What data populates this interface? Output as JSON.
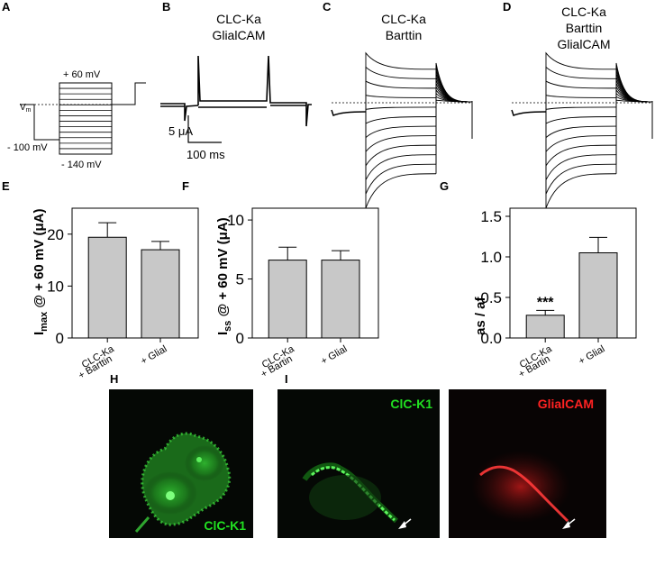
{
  "panels": {
    "A": {
      "letter": "A",
      "vm": "V",
      "vm_sub": "m",
      "top": "+ 60 mV",
      "hold": "- 100 mV",
      "bottom": "- 140 mV"
    },
    "B": {
      "letter": "B",
      "title": [
        "CLC-Ka",
        "GlialCAM"
      ],
      "scale_y": "5 μA",
      "scale_x": "100 ms"
    },
    "C": {
      "letter": "C",
      "title": [
        "CLC-Ka",
        "Barttin"
      ]
    },
    "D": {
      "letter": "D",
      "title": [
        "CLC-Ka",
        "Barttin",
        "GlialCAM"
      ]
    },
    "H": {
      "letter": "H",
      "stain": "ClC-K1"
    },
    "I": {
      "letter": "I",
      "stain_left": "ClC-K1",
      "stain_right": "GlialCAM"
    }
  },
  "colors": {
    "green": "#21e021",
    "red": "#ff2222",
    "bar": "#c8c8c8"
  },
  "chart_data": [
    {
      "panel": "E",
      "letter": "E",
      "type": "bar",
      "categories": [
        [
          "CLC-Ka",
          "+ Barttin"
        ],
        [
          "+ Glial"
        ]
      ],
      "values": [
        19.4,
        17.0
      ],
      "errors": [
        2.8,
        1.6
      ],
      "ylim": [
        0,
        25
      ],
      "yticks": [
        0,
        10,
        20
      ],
      "ylabel": {
        "main": "I",
        "sub": "max",
        "rest": " @ + 60 mV (μA)"
      }
    },
    {
      "panel": "F",
      "letter": "F",
      "type": "bar",
      "categories": [
        [
          "CLC-Ka",
          "+ Bartin"
        ],
        [
          "+ Glial"
        ]
      ],
      "values": [
        6.6,
        6.6
      ],
      "errors": [
        1.1,
        0.8
      ],
      "ylim": [
        0,
        11
      ],
      "yticks": [
        0,
        5,
        10
      ],
      "ylabel": {
        "main": "I",
        "sub": "ss",
        "rest": " @ + 60 mV (μA)"
      }
    },
    {
      "panel": "G",
      "letter": "G",
      "type": "bar",
      "categories": [
        [
          "CLC-Ka",
          "+ Bartin"
        ],
        [
          "+ Glial"
        ]
      ],
      "values": [
        0.28,
        1.05
      ],
      "errors": [
        0.06,
        0.19
      ],
      "ylim": [
        0,
        1.6
      ],
      "yticks": [
        0.0,
        0.5,
        1.0,
        1.5
      ],
      "ylabel": {
        "main": "as / af",
        "sub": "",
        "rest": ""
      },
      "annotations": [
        "***"
      ]
    }
  ]
}
